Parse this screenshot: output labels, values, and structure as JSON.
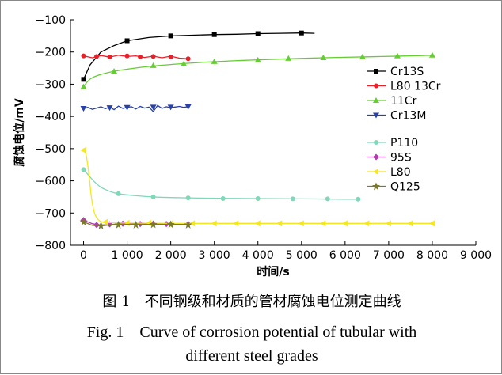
{
  "chart_data": {
    "type": "line",
    "title": "",
    "xlabel": "时间/s",
    "ylabel": "腐蚀电位/mV",
    "xlim": [
      -300,
      9000
    ],
    "ylim": [
      -800,
      -100
    ],
    "xticks": [
      0,
      1000,
      2000,
      3000,
      4000,
      5000,
      6000,
      7000,
      8000,
      9000
    ],
    "xtick_labels": [
      "0",
      "1 000",
      "2 000",
      "3 000",
      "4 000",
      "5 000",
      "6 000",
      "7 000",
      "8 000",
      "9 000"
    ],
    "yticks": [
      -800,
      -700,
      -600,
      -500,
      -400,
      -300,
      -200,
      -100
    ],
    "ytick_labels": [
      "-800",
      "-700",
      "-600",
      "-500",
      "-400",
      "-300",
      "-200",
      "-100"
    ],
    "series": [
      {
        "name": "Cr13S",
        "color": "#000000",
        "marker": "square",
        "x": [
          0,
          150,
          400,
          700,
          1000,
          1500,
          2000,
          2500,
          3000,
          3500,
          4000,
          4500,
          5000,
          5300
        ],
        "y": [
          -285,
          -240,
          -200,
          -180,
          -165,
          -155,
          -150,
          -148,
          -146,
          -145,
          -143,
          -142,
          -141,
          -142
        ],
        "mx": [
          0,
          1000,
          2000,
          3000,
          4000,
          5000
        ],
        "my": [
          -285,
          -165,
          -150,
          -146,
          -143,
          -141
        ]
      },
      {
        "name": "L80 13Cr",
        "color": "#e8202a",
        "marker": "circle",
        "x": [
          0,
          200,
          400,
          600,
          800,
          1000,
          1200,
          1400,
          1600,
          1800,
          2000,
          2200,
          2400
        ],
        "y": [
          -212,
          -218,
          -211,
          -216,
          -210,
          -214,
          -212,
          -217,
          -213,
          -218,
          -213,
          -219,
          -221
        ],
        "mx": [
          0,
          300,
          600,
          1000,
          1300,
          1600,
          2000,
          2400
        ],
        "my": [
          -212,
          -214,
          -215,
          -212,
          -215,
          -214,
          -215,
          -221
        ]
      },
      {
        "name": "11Cr",
        "color": "#66cc33",
        "marker": "triangle-up",
        "x": [
          0,
          200,
          700,
          1500,
          2500,
          3500,
          4500,
          5500,
          6500,
          7500,
          8000
        ],
        "y": [
          -308,
          -280,
          -260,
          -245,
          -234,
          -227,
          -222,
          -218,
          -215,
          -212,
          -210
        ],
        "mx": [
          0,
          700,
          1600,
          2300,
          3000,
          4000,
          4700,
          5500,
          6400,
          7200,
          8000
        ],
        "my": [
          -308,
          -260,
          -242,
          -237,
          -230,
          -225,
          -220,
          -218,
          -215,
          -212,
          -210
        ],
        "curve": true
      },
      {
        "name": "Cr13M",
        "color": "#2840a8",
        "marker": "triangle-down",
        "x": [
          0,
          100,
          200,
          300,
          400,
          500,
          600,
          700,
          800,
          900,
          1000,
          1100,
          1200,
          1300,
          1400,
          1500,
          1600,
          1700,
          1800,
          1900,
          2000,
          2100,
          2200,
          2300,
          2400
        ],
        "y": [
          -375,
          -372,
          -378,
          -374,
          -370,
          -376,
          -371,
          -379,
          -368,
          -375,
          -372,
          -370,
          -377,
          -369,
          -374,
          -371,
          -385,
          -366,
          -375,
          -370,
          -373,
          -371,
          -369,
          -372,
          -370
        ],
        "mx": [
          0,
          600,
          1000,
          1600,
          2000,
          2400
        ],
        "my": [
          -375,
          -373,
          -372,
          -371,
          -371,
          -370
        ]
      },
      {
        "name": "P110",
        "color": "#7fd8b8",
        "marker": "circle",
        "x": [
          0,
          100,
          250,
          400,
          550,
          700,
          900,
          1200,
          1600,
          2000,
          3000,
          4000,
          5000,
          6000,
          6300
        ],
        "y": [
          -565,
          -580,
          -603,
          -620,
          -630,
          -637,
          -642,
          -646,
          -650,
          -652,
          -654,
          -655,
          -656,
          -657,
          -657
        ],
        "mx": [
          0,
          800,
          1600,
          2400,
          3200,
          4000,
          4800,
          5600,
          6300
        ],
        "my": [
          -565,
          -640,
          -650,
          -653,
          -655,
          -655,
          -656,
          -656,
          -657
        ],
        "curve": true
      },
      {
        "name": "95S",
        "color": "#b03cb0",
        "marker": "diamond",
        "x": [
          0,
          200,
          400,
          600,
          800,
          1000,
          1300,
          1600,
          1900,
          2200,
          2400
        ],
        "y": [
          -722,
          -733,
          -738,
          -736,
          -734,
          -733,
          -734,
          -733,
          -733,
          -734,
          -734
        ],
        "mx": [
          0,
          300,
          600,
          900,
          1300,
          1600,
          1900,
          2400
        ],
        "my": [
          -722,
          -737,
          -735,
          -733,
          -734,
          -733,
          -734,
          -734
        ]
      },
      {
        "name": "L80",
        "color": "#f4e81c",
        "marker": "triangle-left",
        "x": [
          0,
          60,
          120,
          180,
          250,
          350,
          450,
          600,
          1000,
          2000,
          3000,
          4000,
          5000,
          6000,
          7000,
          8000
        ],
        "y": [
          -505,
          -520,
          -575,
          -650,
          -700,
          -722,
          -728,
          -730,
          -731,
          -732,
          -732,
          -732,
          -732,
          -732,
          -732,
          -732
        ],
        "mx": [
          0,
          500,
          1000,
          1500,
          2000,
          2500,
          3000,
          3500,
          4000,
          4500,
          5000,
          5500,
          6000,
          6500,
          7000,
          7500,
          8000
        ],
        "my": [
          -505,
          -728,
          -731,
          -731,
          -732,
          -732,
          -732,
          -732,
          -732,
          -732,
          -732,
          -732,
          -732,
          -732,
          -732,
          -732,
          -732
        ],
        "curve": true
      },
      {
        "name": "Q125",
        "color": "#7a7a2a",
        "marker": "star",
        "x": [
          0,
          200,
          400,
          600,
          800,
          1000,
          1300,
          1600,
          1900,
          2200,
          2400
        ],
        "y": [
          -727,
          -738,
          -740,
          -737,
          -736,
          -735,
          -736,
          -735,
          -735,
          -736,
          -736
        ],
        "mx": [
          0,
          400,
          800,
          1200,
          1600,
          2000,
          2400
        ],
        "my": [
          -727,
          -739,
          -736,
          -736,
          -735,
          -735,
          -736
        ]
      }
    ],
    "legend_groups": [
      [
        "Cr13S",
        "L80 13Cr",
        "11Cr",
        "Cr13M"
      ],
      [
        "P110",
        "95S",
        "L80",
        "Q125"
      ]
    ],
    "legend_position": "right"
  },
  "caption": {
    "chinese": "图 1　不同钢级和材质的管材腐蚀电位测定曲线",
    "english_line1": "Fig. 1　Curve of corrosion potential of tubular with",
    "english_line2": "different steel grades"
  }
}
